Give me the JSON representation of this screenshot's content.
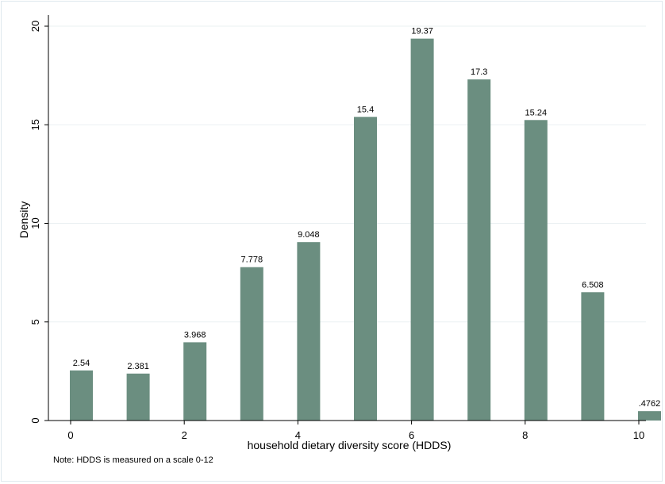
{
  "chart_data": {
    "type": "bar",
    "xlabel": "household dietary diversity score (HDDS)",
    "ylabel": "Density",
    "note": "Note: HDDS is measured on a scale 0-12",
    "x": [
      0,
      1,
      2,
      3,
      4,
      5,
      6,
      7,
      8,
      9,
      10
    ],
    "values": [
      2.54,
      2.381,
      3.968,
      7.778,
      9.048,
      15.4,
      19.37,
      17.3,
      15.24,
      6.508,
      0.4762
    ],
    "value_labels": [
      "2.54",
      "2.381",
      "3.968",
      "7.778",
      "9.048",
      "15.4",
      "19.37",
      "17.3",
      "15.24",
      "6.508",
      ".4762"
    ],
    "xlim": [
      0,
      10
    ],
    "ylim": [
      0,
      20
    ],
    "xticks": [
      0,
      2,
      4,
      6,
      8,
      10
    ],
    "yticks": [
      0,
      5,
      10,
      15,
      20
    ],
    "grid": true,
    "bar_color": "#6b8e80"
  }
}
